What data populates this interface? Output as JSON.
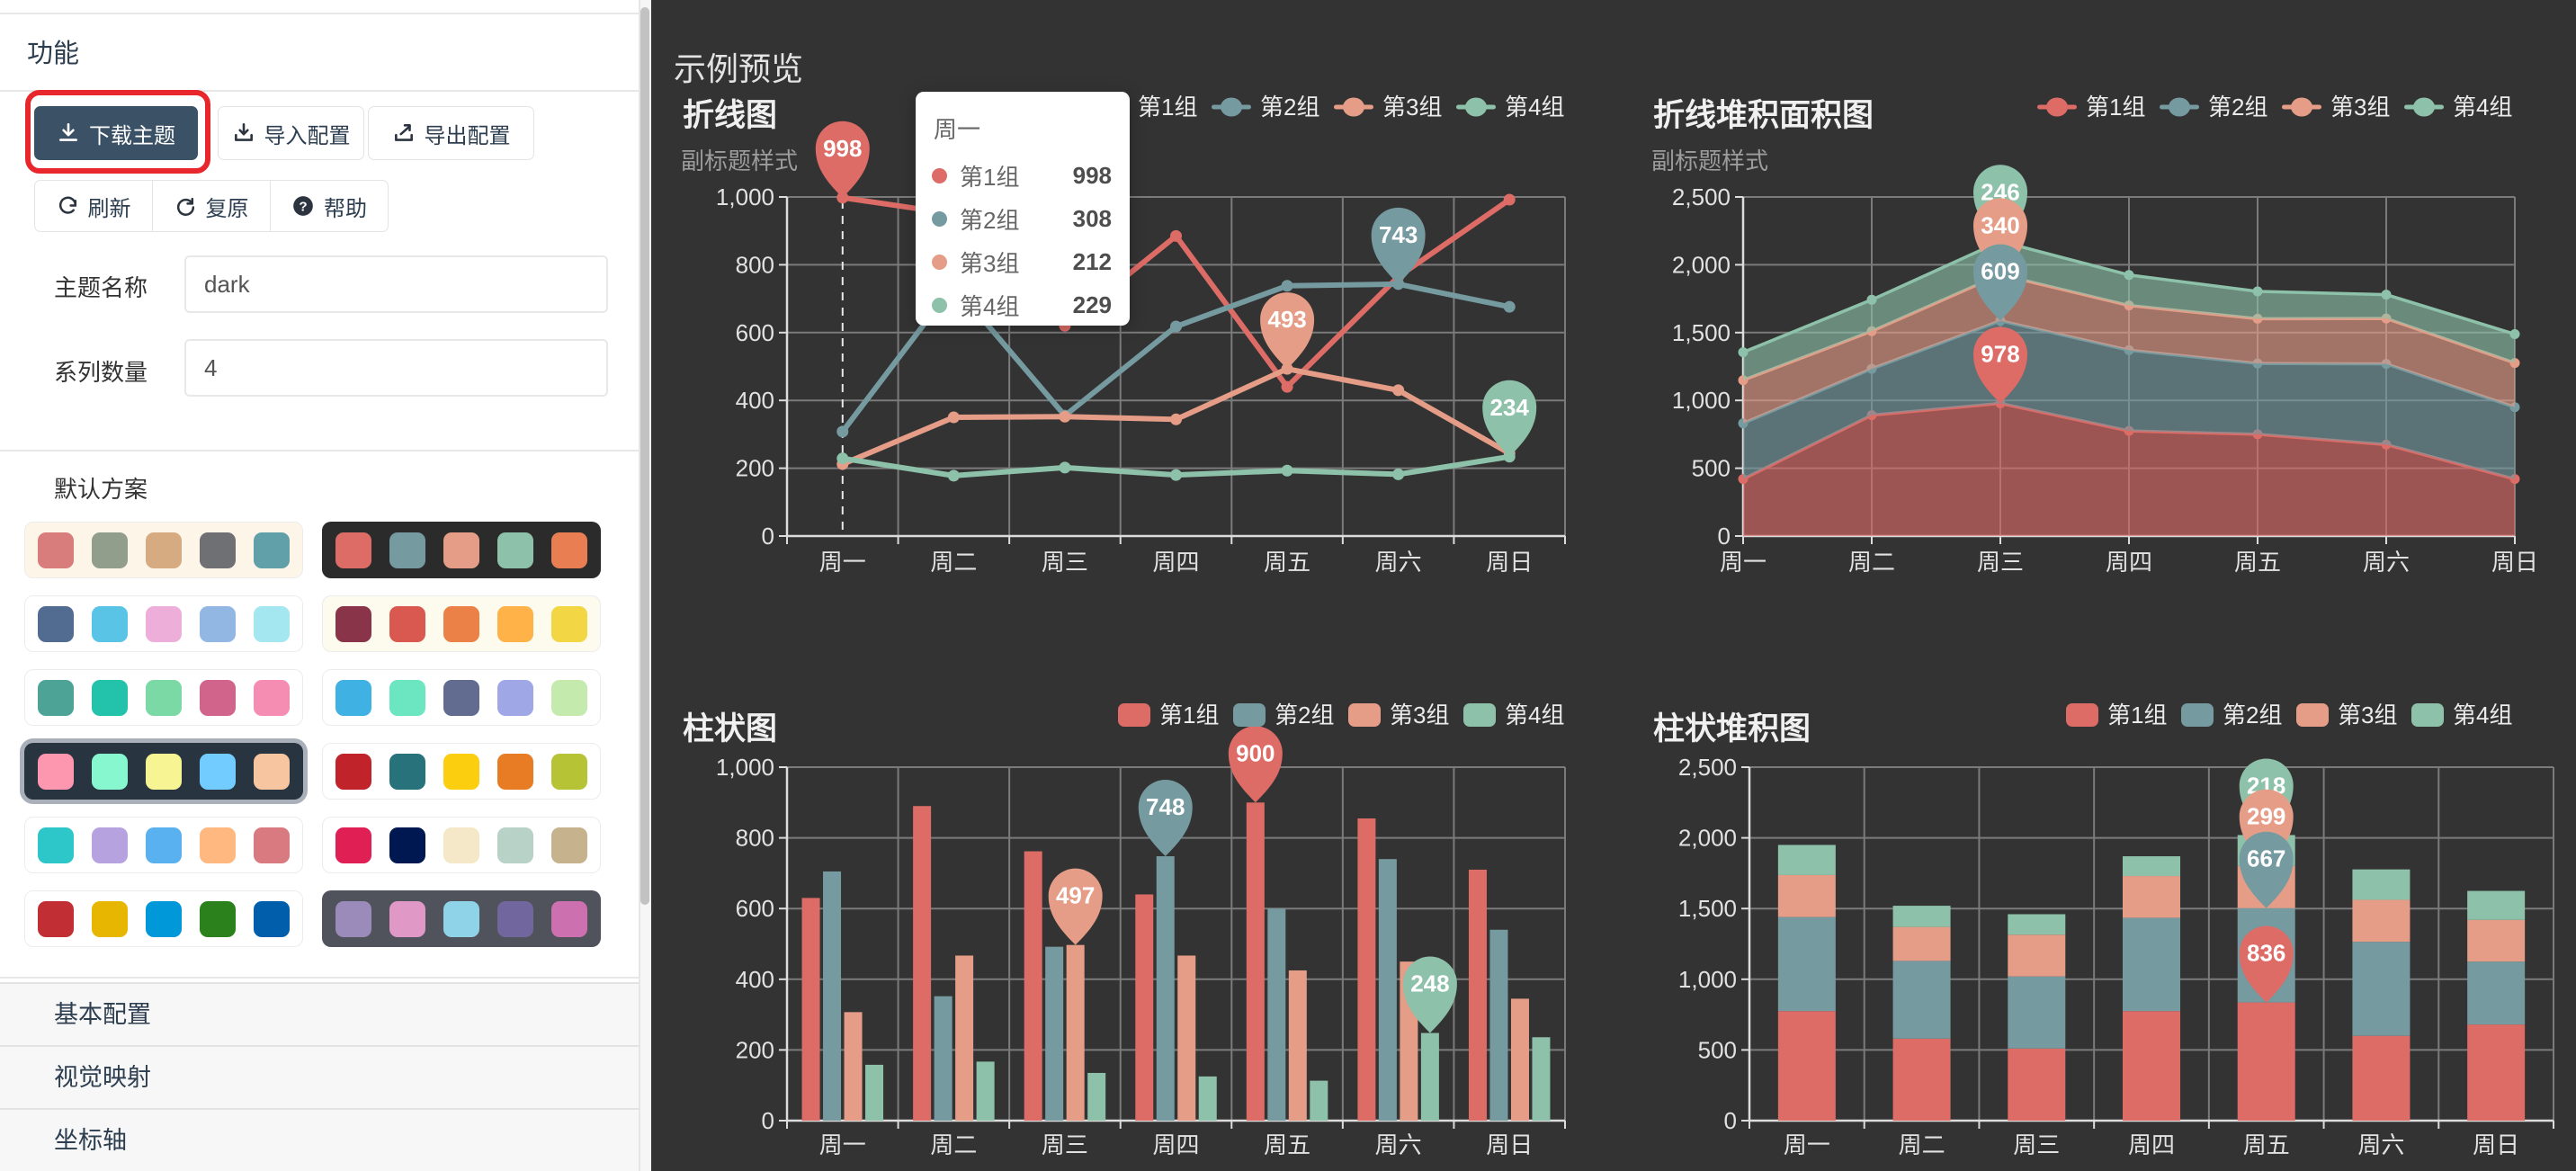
{
  "sidebar": {
    "panel_title": "功能",
    "buttons": {
      "download": "下载主题",
      "import_config": "导入配置",
      "export_config": "导出配置",
      "refresh": "刷新",
      "reset": "复原",
      "help": "帮助"
    },
    "fields": [
      {
        "label": "主题名称",
        "value": "dark"
      },
      {
        "label": "系列数量",
        "value": "4"
      }
    ],
    "palette_section_title": "默认方案",
    "palettes": [
      {
        "name": "vintage",
        "bg": "#fdf6e8",
        "selected": false,
        "colors": [
          "#d87c7c",
          "#919e8b",
          "#d7ab82",
          "#6e7074",
          "#61a0a8"
        ]
      },
      {
        "name": "dark",
        "bg": "#2b2b2b",
        "selected": false,
        "colors": [
          "#dd6b66",
          "#759aa0",
          "#e69d87",
          "#8dc1a9",
          "#ea7e53"
        ]
      },
      {
        "name": "westeros",
        "bg": "#ffffff",
        "selected": false,
        "colors": [
          "#516b91",
          "#59c4e6",
          "#edafda",
          "#93b7e3",
          "#a5e7f0"
        ]
      },
      {
        "name": "essos",
        "bg": "#fdfaee",
        "selected": false,
        "colors": [
          "#893448",
          "#d95850",
          "#eb8146",
          "#ffb248",
          "#f2d643"
        ]
      },
      {
        "name": "wonderland",
        "bg": "#ffffff",
        "selected": false,
        "colors": [
          "#4ea397",
          "#22c3aa",
          "#7bd9a5",
          "#d0648a",
          "#f58db2"
        ]
      },
      {
        "name": "walden",
        "bg": "#ffffff",
        "selected": false,
        "colors": [
          "#3fb1e3",
          "#6be6c1",
          "#626c91",
          "#a0a7e6",
          "#c4ebad"
        ]
      },
      {
        "name": "chalk",
        "bg": "#293441",
        "selected": true,
        "colors": [
          "#fc97af",
          "#87f7cf",
          "#f7f494",
          "#72ccff",
          "#f7c5a0"
        ]
      },
      {
        "name": "infographic",
        "bg": "#ffffff",
        "selected": false,
        "colors": [
          "#c1232b",
          "#27727b",
          "#fcce10",
          "#e87c25",
          "#b5c334"
        ]
      },
      {
        "name": "macarons",
        "bg": "#ffffff",
        "selected": false,
        "colors": [
          "#2ec7c9",
          "#b6a2de",
          "#5ab1ef",
          "#ffb980",
          "#d87a80"
        ]
      },
      {
        "name": "roma",
        "bg": "#ffffff",
        "selected": false,
        "colors": [
          "#e01f54",
          "#001852",
          "#f5e8c8",
          "#b8d2c7",
          "#c6b38e"
        ]
      },
      {
        "name": "shine",
        "bg": "#ffffff",
        "selected": false,
        "colors": [
          "#c12e34",
          "#e6b600",
          "#0098d9",
          "#2b821d",
          "#005eaa"
        ]
      },
      {
        "name": "purple-passion",
        "bg": "#50535c",
        "selected": false,
        "colors": [
          "#9b8bba",
          "#e098c7",
          "#8fd3e8",
          "#71669e",
          "#cc70af"
        ]
      }
    ],
    "accordion": [
      "基本配置",
      "视觉映射",
      "坐标轴"
    ]
  },
  "preview": {
    "header": "示例预览",
    "background": "#333333",
    "series_colors": [
      "#dd6b66",
      "#759aa0",
      "#e69d87",
      "#8dc1a9"
    ],
    "tooltip": {
      "title": "周一",
      "rows": [
        {
          "name": "第1组",
          "value": "998",
          "color": "#dd6b66"
        },
        {
          "name": "第2组",
          "value": "308",
          "color": "#759aa0"
        },
        {
          "name": "第3组",
          "value": "212",
          "color": "#e69d87"
        },
        {
          "name": "第4组",
          "value": "229",
          "color": "#8dc1a9"
        }
      ]
    }
  },
  "chart_data": [
    {
      "type": "line",
      "title": "折线图",
      "subtitle": "副标题样式",
      "categories": [
        "周一",
        "周二",
        "周三",
        "周四",
        "周五",
        "周六",
        "周日"
      ],
      "ylim": [
        0,
        1000
      ],
      "ytick_step": 200,
      "grid": true,
      "legend_position": "top-right",
      "series": [
        {
          "name": "第1组",
          "values": [
            998,
            950,
            620,
            885,
            440,
            765,
            992
          ]
        },
        {
          "name": "第2组",
          "values": [
            308,
            740,
            355,
            618,
            738,
            743,
            676
          ]
        },
        {
          "name": "第3组",
          "values": [
            212,
            350,
            352,
            344,
            493,
            430,
            244
          ]
        },
        {
          "name": "第4组",
          "values": [
            229,
            178,
            202,
            180,
            193,
            182,
            234
          ]
        }
      ],
      "mark_points": [
        {
          "series": 0,
          "category": 0,
          "value": 998
        },
        {
          "series": 1,
          "category": 5,
          "value": 743
        },
        {
          "series": 2,
          "category": 4,
          "value": 493
        },
        {
          "series": 3,
          "category": 6,
          "value": 234
        }
      ],
      "axis_pointer_category": 0
    },
    {
      "type": "area",
      "title": "折线堆积面积图",
      "subtitle": "副标题样式",
      "categories": [
        "周一",
        "周二",
        "周三",
        "周四",
        "周五",
        "周六",
        "周日"
      ],
      "ylim": [
        0,
        2500
      ],
      "ytick_step": 500,
      "grid": true,
      "legend_position": "top-right",
      "stacked": true,
      "series": [
        {
          "name": "第1组",
          "values": [
            420,
            891,
            978,
            775,
            750,
            674,
            420
          ]
        },
        {
          "name": "第2组",
          "values": [
            411,
            342,
            609,
            595,
            522,
            595,
            530
          ]
        },
        {
          "name": "第3组",
          "values": [
            318,
            277,
            340,
            330,
            330,
            335,
            326
          ]
        },
        {
          "name": "第4组",
          "values": [
            206,
            232,
            246,
            225,
            202,
            176,
            213
          ]
        }
      ],
      "mark_points": [
        {
          "series": 0,
          "category": 2,
          "value": 978
        },
        {
          "series": 1,
          "category": 2,
          "value": 609
        },
        {
          "series": 2,
          "category": 2,
          "value": 340
        },
        {
          "series": 3,
          "category": 2,
          "value": 246
        }
      ]
    },
    {
      "type": "bar",
      "title": "柱状图",
      "subtitle": "",
      "categories": [
        "周一",
        "周二",
        "周三",
        "周四",
        "周五",
        "周六",
        "周日"
      ],
      "ylim": [
        0,
        1000
      ],
      "ytick_step": 200,
      "grid": true,
      "legend_position": "top-right",
      "series": [
        {
          "name": "第1组",
          "values": [
            630,
            890,
            762,
            640,
            900,
            855,
            710
          ]
        },
        {
          "name": "第2组",
          "values": [
            705,
            352,
            492,
            748,
            600,
            740,
            540
          ]
        },
        {
          "name": "第3组",
          "values": [
            307,
            467,
            497,
            467,
            425,
            450,
            345
          ]
        },
        {
          "name": "第4组",
          "values": [
            158,
            167,
            135,
            125,
            113,
            248,
            236
          ]
        }
      ],
      "mark_points": [
        {
          "series": 0,
          "category": 4,
          "value": 900
        },
        {
          "series": 1,
          "category": 3,
          "value": 748
        },
        {
          "series": 2,
          "category": 2,
          "value": 497
        },
        {
          "series": 3,
          "category": 5,
          "value": 248
        }
      ]
    },
    {
      "type": "stacked-bar",
      "title": "柱状堆积图",
      "subtitle": "",
      "categories": [
        "周一",
        "周二",
        "周三",
        "周四",
        "周五",
        "周六",
        "周日"
      ],
      "ylim": [
        0,
        2500
      ],
      "ytick_step": 500,
      "grid": true,
      "legend_position": "top-right",
      "stacked": true,
      "series": [
        {
          "name": "第1组",
          "values": [
            775,
            580,
            510,
            775,
            836,
            600,
            680
          ]
        },
        {
          "name": "第2组",
          "values": [
            665,
            550,
            510,
            660,
            667,
            665,
            445
          ]
        },
        {
          "name": "第3组",
          "values": [
            297,
            240,
            295,
            295,
            299,
            297,
            295
          ]
        },
        {
          "name": "第4组",
          "values": [
            213,
            150,
            145,
            140,
            218,
            215,
            205
          ]
        }
      ],
      "mark_points": [
        {
          "series": 0,
          "category": 4,
          "value": 836
        },
        {
          "series": 1,
          "category": 4,
          "value": 667
        },
        {
          "series": 2,
          "category": 4,
          "value": 299
        },
        {
          "series": 3,
          "category": 4,
          "value": 218
        }
      ]
    }
  ]
}
